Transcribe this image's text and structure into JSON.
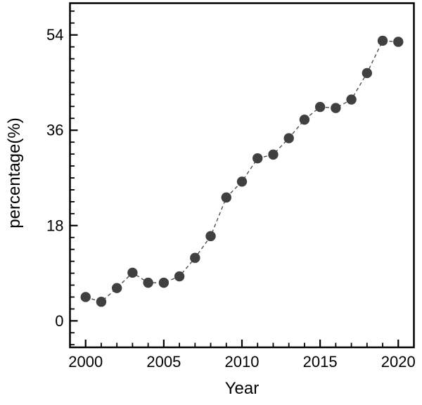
{
  "chart_data": {
    "type": "line",
    "title": "",
    "xlabel": "Year",
    "ylabel": "percentage(%)",
    "x": [
      2000,
      2001,
      2002,
      2003,
      2004,
      2005,
      2006,
      2007,
      2008,
      2009,
      2010,
      2011,
      2012,
      2013,
      2014,
      2015,
      2016,
      2017,
      2018,
      2019,
      2020
    ],
    "series": [
      {
        "name": "percentage",
        "values": [
          4.5,
          3.6,
          6.2,
          9.1,
          7.2,
          7.2,
          8.4,
          11.9,
          16.0,
          23.3,
          26.3,
          30.7,
          31.4,
          34.5,
          38.0,
          40.4,
          40.2,
          41.8,
          46.8,
          52.9,
          52.7
        ]
      }
    ],
    "x_range": [
      1999,
      2021
    ],
    "y_range": [
      -5,
      60
    ],
    "x_major_ticks": [
      2000,
      2005,
      2010,
      2015,
      2020
    ],
    "x_tick_labels": [
      "2000",
      "2005",
      "2010",
      "2015",
      "2020"
    ],
    "x_minor_step": 1,
    "y_major_ticks": [
      0,
      18,
      36,
      54
    ],
    "y_tick_labels": [
      "0",
      "18",
      "36",
      "54"
    ],
    "y_minor_step": 2.25,
    "grid": false,
    "legend": "none",
    "tick_direction": "in",
    "marker_shape": "circle",
    "marker_color": "#404040",
    "line_color": "#4d4d4d",
    "line_style": "dashed",
    "frame_color": "#000000",
    "background": "#ffffff"
  }
}
